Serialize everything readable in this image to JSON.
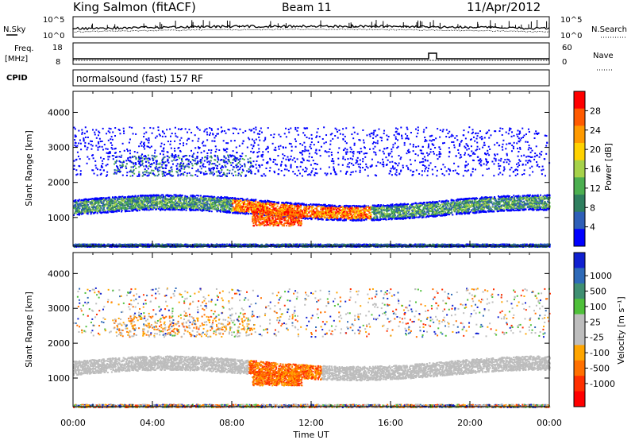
{
  "header": {
    "station": "King Salmon (fitACF)",
    "beam": "Beam 11",
    "date": "11/Apr/2012"
  },
  "panels": {
    "nsky_label": "N.Sky",
    "nsearch_label": "N.Search",
    "freq_label_top": "Freq.",
    "freq_label_unit": "[MHz]",
    "nave_label": "Nave",
    "cpid_label": "CPID",
    "cpid_text": "normalsound (fast) 157 RF",
    "noise_ticks": [
      "10^5",
      "10^0"
    ],
    "freq_ticks": [
      "18",
      "8"
    ],
    "nave_ticks": [
      "60",
      "0"
    ]
  },
  "chart_data": [
    {
      "type": "heatmap",
      "quantity": "Power",
      "ylabel": "Slant Range [km]",
      "colorbar_label": "Power [dB]",
      "ylim": [
        180,
        4600
      ],
      "xlim_hours": [
        0,
        24
      ],
      "yticks": [
        1000,
        2000,
        3000,
        4000
      ],
      "colorbar_ticks": [
        "28",
        "24",
        "20",
        "16",
        "12",
        "8",
        "4"
      ],
      "colorbar_colors": [
        "#ff0000",
        "#ff5a00",
        "#ff9a00",
        "#ffd200",
        "#a6d24a",
        "#4caf50",
        "#2f7f5f",
        "#2e5fb8",
        "#0000ff"
      ]
    },
    {
      "type": "heatmap",
      "quantity": "Velocity",
      "ylabel": "Slant Range [km]",
      "colorbar_label": "Velocity [m s⁻¹]",
      "ylim": [
        180,
        4600
      ],
      "xlim_hours": [
        0,
        24
      ],
      "yticks": [
        1000,
        2000,
        3000,
        4000
      ],
      "colorbar_ticks": [
        "1000",
        "500",
        "100",
        "25",
        "-25",
        "-100",
        "-500",
        "-1000"
      ],
      "colorbar_colors": [
        "#1020d0",
        "#2e6ab8",
        "#3f8f72",
        "#4fc03a",
        "#bdbdbd",
        "#bdbdbd",
        "#ffa500",
        "#ff7000",
        "#ff3000",
        "#ff0000"
      ]
    }
  ],
  "xaxis": {
    "ticks": [
      "00:00",
      "04:00",
      "08:00",
      "12:00",
      "16:00",
      "20:00",
      "00:00"
    ],
    "label": "Time UT"
  }
}
